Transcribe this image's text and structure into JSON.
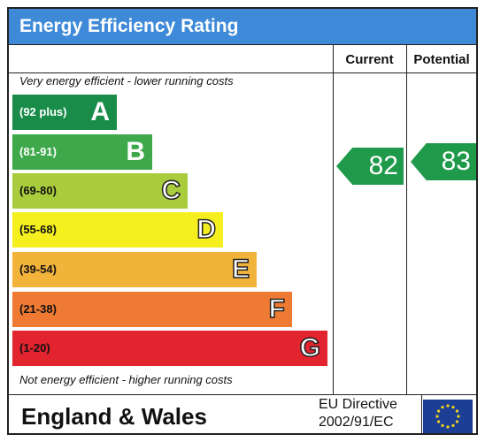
{
  "title": "Energy Efficiency Rating",
  "columns": {
    "current": "Current",
    "potential": "Potential"
  },
  "notes": {
    "top": "Very energy efficient - lower running costs",
    "bottom": "Not energy efficient - higher running costs"
  },
  "bands": [
    {
      "range": "(92 plus)",
      "letter": "A",
      "color": "#1a8c4a"
    },
    {
      "range": "(81-91)",
      "letter": "B",
      "color": "#3ea84a"
    },
    {
      "range": "(69-80)",
      "letter": "C",
      "color": "#a9cc3c"
    },
    {
      "range": "(55-68)",
      "letter": "D",
      "color": "#f5ef1f"
    },
    {
      "range": "(39-54)",
      "letter": "E",
      "color": "#f2b33a"
    },
    {
      "range": "(21-38)",
      "letter": "F",
      "color": "#ef7a33"
    },
    {
      "range": "(1-20)",
      "letter": "G",
      "color": "#e2242f"
    }
  ],
  "current_rating": {
    "value": "82",
    "band": "B",
    "color": "#1f9a4a"
  },
  "potential_rating": {
    "value": "83",
    "band": "B",
    "color": "#1f9a4a"
  },
  "footer": {
    "region": "England & Wales",
    "directive_line1": "EU Directive",
    "directive_line2": "2002/91/EC"
  },
  "flag_icon": "eu-flag-icon"
}
